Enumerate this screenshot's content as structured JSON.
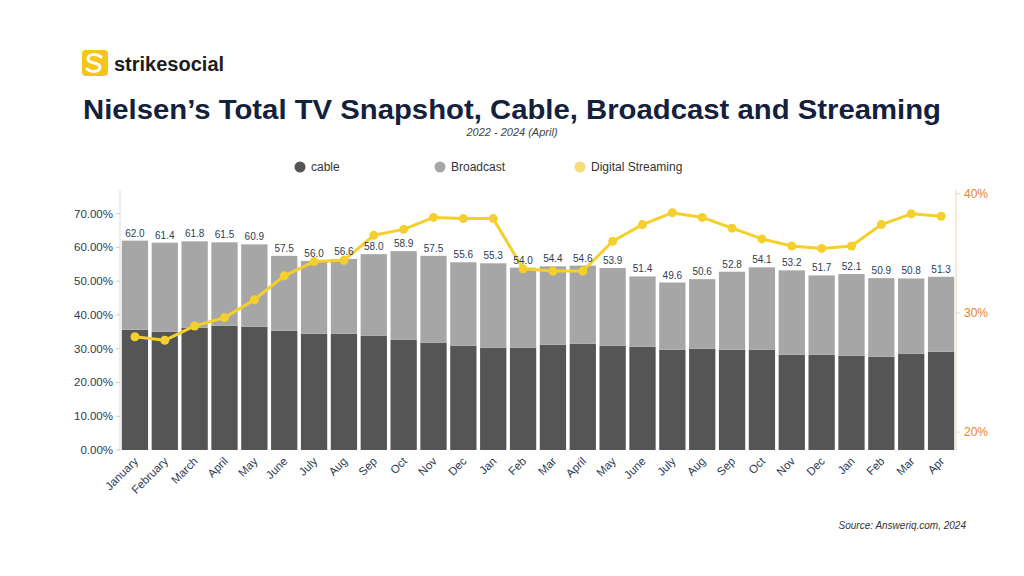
{
  "chart_data": {
    "type": "bar",
    "title": "Nielsen’s Total TV Snapshot, Cable, Broadcast and Streaming",
    "subtitle": "2022 - 2024 (April)",
    "brand": "strikesocial",
    "source": "Source: Answeriq.com, 2024",
    "stacked": true,
    "grid": false,
    "legend": "top",
    "categories": [
      "January",
      "February",
      "March",
      "April",
      "May",
      "June",
      "July",
      "Aug",
      "Sep",
      "Oct",
      "Nov",
      "Dec",
      "Jan",
      "Feb",
      "Mar",
      "April",
      "May",
      "June",
      "July",
      "Aug",
      "Sep",
      "Oct",
      "Nov",
      "Dec",
      "Jan",
      "Feb",
      "Mar",
      "Apr"
    ],
    "series": [
      {
        "name": "cable",
        "color": "#555555",
        "type": "bar",
        "values": [
          35.6,
          35.0,
          36.2,
          36.8,
          36.5,
          35.3,
          34.4,
          34.4,
          33.8,
          32.6,
          31.8,
          30.9,
          30.3,
          30.3,
          31.2,
          31.5,
          30.9,
          30.6,
          29.7,
          30.0,
          29.7,
          29.7,
          28.2,
          28.2,
          27.9,
          27.6,
          28.5,
          29.1
        ]
      },
      {
        "name": "Broadcast",
        "color": "#a6a6a6",
        "type": "bar",
        "values": [
          26.4,
          26.4,
          25.6,
          24.7,
          24.4,
          22.2,
          21.6,
          22.2,
          24.2,
          26.3,
          25.7,
          24.7,
          25.0,
          23.7,
          23.2,
          23.1,
          23.0,
          20.8,
          19.9,
          20.6,
          23.1,
          24.4,
          25.0,
          23.5,
          24.2,
          23.3,
          22.3,
          22.2
        ]
      },
      {
        "name": "Digital Streaming",
        "color": "#f5cf2c",
        "type": "line",
        "marker": "circle",
        "axis": "y2",
        "values": [
          28.0,
          27.7,
          28.9,
          29.6,
          31.1,
          33.1,
          34.3,
          34.4,
          36.5,
          37.0,
          38.0,
          37.9,
          37.9,
          33.7,
          33.5,
          33.5,
          36.0,
          37.4,
          38.4,
          38.0,
          37.1,
          36.2,
          35.6,
          35.4,
          35.6,
          37.4,
          38.3,
          38.1
        ]
      }
    ],
    "totals": [
      62.0,
      61.4,
      61.8,
      61.5,
      60.9,
      57.5,
      56.0,
      56.6,
      58.0,
      58.9,
      57.5,
      55.6,
      55.3,
      54.0,
      54.4,
      54.6,
      53.9,
      51.4,
      49.6,
      50.6,
      52.8,
      54.1,
      53.2,
      51.7,
      52.1,
      50.9,
      50.8,
      51.3
    ],
    "total_labels": [
      "62.0",
      "61.4",
      "61.8",
      "61.5",
      "60.9",
      "57.5",
      "56.0",
      "56.6",
      "58.0",
      "58.9",
      "57.5",
      "55.6",
      "55.3",
      "54.0",
      "54.4",
      "54.6",
      "53.9",
      "51.4",
      "49.6",
      "50.6",
      "52.8",
      "54.1",
      "53.2",
      "51.7",
      "52.1",
      "50.9",
      "50.8",
      "51.3"
    ],
    "ylim": [
      0,
      77
    ],
    "yticks": [
      {
        "value": 0,
        "label": "0.00%"
      },
      {
        "value": 10,
        "label": "10.00%"
      },
      {
        "value": 20,
        "label": "20.00%"
      },
      {
        "value": 30,
        "label": "30.00%"
      },
      {
        "value": 40,
        "label": "40.00%"
      },
      {
        "value": 50,
        "label": "50.00%"
      },
      {
        "value": 60,
        "label": "60.00%"
      },
      {
        "value": 70,
        "label": "70.00%"
      }
    ],
    "y2lim": [
      18.5,
      40.3
    ],
    "y2ticks": [
      {
        "value": 20,
        "label": "20%"
      },
      {
        "value": 30,
        "label": "30%"
      },
      {
        "value": 40,
        "label": "40%"
      }
    ]
  }
}
